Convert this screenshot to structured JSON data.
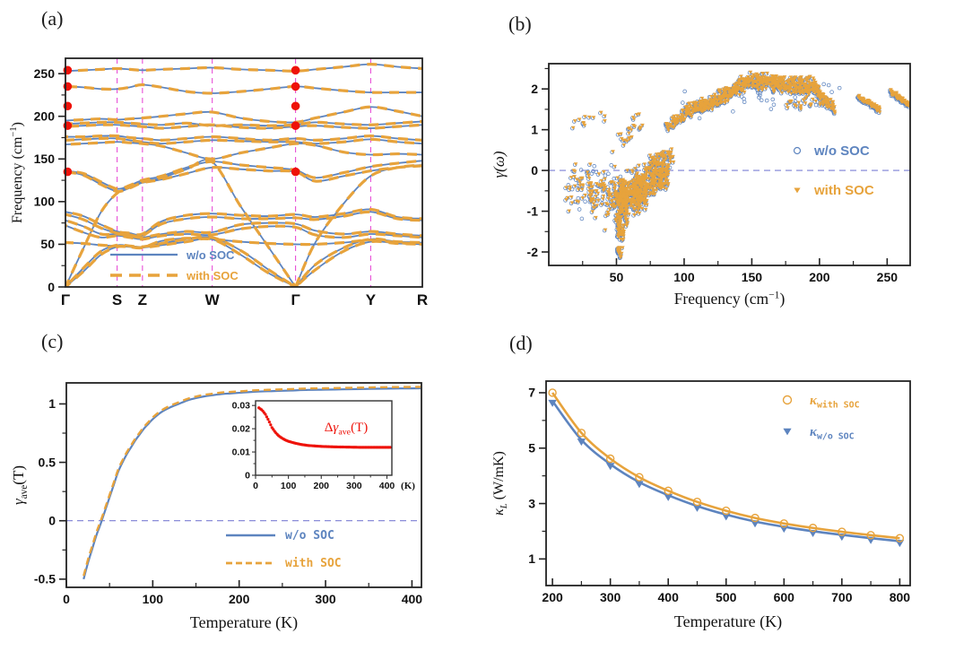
{
  "palette": {
    "blue": "#5d84bf",
    "orange": "#e7a33c",
    "red": "#ee1209",
    "magenta": "#e84fd7",
    "zero_line": "#7b7fd4",
    "frame": "#222222",
    "text": "#111111",
    "inset_frame": "#333333"
  },
  "chart_data": [
    {
      "id": "a",
      "type": "line",
      "subtype": "phonon-dispersion",
      "panel_label": "(a)",
      "ylabel_parts": [
        {
          "t": "Frequency (cm"
        },
        {
          "t": "−1",
          "sup": true
        },
        {
          "t": ")"
        }
      ],
      "ylim": [
        0,
        268
      ],
      "yticks": {
        "values": [
          0,
          50,
          100,
          150,
          200,
          250
        ],
        "labels": [
          "0",
          "50",
          "100",
          "150",
          "200",
          "250"
        ],
        "minor_step": 25
      },
      "kpath": {
        "labels": [
          "Γ",
          "S",
          "Z",
          "W",
          "Γ",
          "Y",
          "R"
        ],
        "positions": [
          0,
          0.1447,
          0.2157,
          0.4112,
          0.6447,
          0.8553,
          1
        ]
      },
      "band_x": [
        0,
        0.05,
        0.1,
        0.145,
        0.18,
        0.215,
        0.27,
        0.34,
        0.41,
        0.49,
        0.57,
        0.6447,
        0.7,
        0.78,
        0.855,
        0.93,
        1
      ],
      "bands_cm1": [
        [
          0,
          18,
          38,
          47,
          47,
          46,
          49,
          53,
          56,
          38,
          16,
          0,
          20,
          42,
          53,
          51,
          50
        ],
        [
          0,
          22,
          42,
          49,
          48,
          47,
          51,
          56,
          58,
          43,
          20,
          0,
          26,
          46,
          56,
          53,
          52
        ],
        [
          0,
          45,
          88,
          110,
          117,
          123,
          128,
          138,
          147,
          95,
          46,
          0,
          52,
          98,
          130,
          140,
          143
        ],
        [
          52,
          51,
          49,
          48,
          47,
          46,
          54,
          57,
          56,
          53,
          51,
          50,
          50,
          52,
          55,
          52,
          50
        ],
        [
          72,
          64,
          58,
          60,
          58,
          56,
          60,
          62,
          61,
          68,
          71,
          70,
          61,
          58,
          62,
          60,
          58
        ],
        [
          78,
          71,
          62,
          62,
          60,
          58,
          62,
          65,
          64,
          73,
          75,
          74,
          66,
          62,
          65,
          62,
          60
        ],
        [
          85,
          79,
          69,
          63,
          61,
          60,
          74,
          80,
          82,
          80,
          80,
          81,
          79,
          83,
          88,
          80,
          78
        ],
        [
          88,
          83,
          73,
          65,
          63,
          62,
          77,
          84,
          86,
          84,
          83,
          85,
          82,
          86,
          91,
          82,
          80
        ],
        [
          135,
          131,
          120,
          112,
          116,
          122,
          126,
          133,
          140,
          138,
          136,
          135,
          124,
          130,
          136,
          140,
          142
        ],
        [
          136,
          133,
          123,
          115,
          119,
          125,
          130,
          140,
          147,
          143,
          140,
          137,
          128,
          134,
          141,
          145,
          148
        ],
        [
          167,
          168,
          169,
          170,
          169,
          168,
          165,
          157,
          150,
          157,
          163,
          168,
          166,
          158,
          155,
          156,
          155
        ],
        [
          172,
          173,
          174,
          174,
          172,
          170,
          168,
          170,
          172,
          171,
          170,
          170,
          168,
          170,
          173,
          170,
          168
        ],
        [
          176,
          176,
          177,
          177,
          175,
          174,
          172,
          174,
          176,
          174,
          172,
          174,
          172,
          174,
          177,
          174,
          172
        ],
        [
          188,
          189,
          190,
          190,
          189,
          188,
          186,
          188,
          190,
          187,
          186,
          188,
          189,
          187,
          186,
          188,
          190
        ],
        [
          191,
          192,
          193,
          193,
          192,
          191,
          190,
          192,
          189,
          190,
          189,
          190,
          193,
          191,
          190,
          192,
          194
        ],
        [
          195,
          196,
          197,
          196,
          197,
          198,
          200,
          203,
          205,
          198,
          194,
          193,
          198,
          205,
          211,
          206,
          200
        ],
        [
          235,
          234,
          232,
          232,
          234,
          237,
          234,
          229,
          227,
          229,
          232,
          235,
          233,
          230,
          228,
          228,
          228
        ],
        [
          253,
          254,
          255,
          256,
          255,
          254,
          255,
          256,
          257,
          255,
          254,
          253,
          255,
          258,
          261,
          258,
          256
        ]
      ],
      "raman_dots_cm1": [
        135,
        189,
        212,
        235,
        254
      ],
      "raman_dot_positions": [
        0.006,
        0.6447
      ],
      "legend": [
        {
          "label": "w/o SOC",
          "style": "solid",
          "color": "blue"
        },
        {
          "label": "with SOC",
          "style": "dashed",
          "color": "orange"
        }
      ]
    },
    {
      "id": "b",
      "type": "scatter",
      "panel_label": "(b)",
      "xlabel_parts": [
        {
          "t": "Frequency (cm"
        },
        {
          "t": "−1",
          "sup": true
        },
        {
          "t": ")"
        }
      ],
      "ylabel_parts": [
        {
          "t": "γ(ω)",
          "i": true
        }
      ],
      "xlim": [
        0,
        267
      ],
      "ylim": [
        -2.33,
        2.62
      ],
      "xticks": {
        "values": [
          50,
          100,
          150,
          200,
          250
        ],
        "labels": [
          "50",
          "100",
          "150",
          "200",
          "250"
        ],
        "minor_step": 25
      },
      "yticks": {
        "values": [
          -2,
          -1,
          0,
          1,
          2
        ],
        "labels": [
          "-2",
          "-1",
          "0",
          "1",
          "2"
        ],
        "minor_step": 0.5
      },
      "zero_line": 0,
      "clusters": [
        [
          12,
          32,
          -0.45,
          -0.35,
          0.38,
          40
        ],
        [
          15,
          45,
          1.15,
          1.45,
          0.16,
          12
        ],
        [
          30,
          48,
          -0.55,
          -0.75,
          0.45,
          70
        ],
        [
          44,
          70,
          0.35,
          1.3,
          0.3,
          26
        ],
        [
          48,
          58,
          -0.8,
          -0.9,
          0.42,
          90
        ],
        [
          50,
          55,
          -1.45,
          -1.55,
          0.28,
          45
        ],
        [
          50.5,
          53.5,
          -1.95,
          -2.08,
          0.1,
          14
        ],
        [
          52,
          72,
          -0.75,
          -0.45,
          0.38,
          220
        ],
        [
          62,
          88,
          -0.5,
          -0.05,
          0.3,
          240
        ],
        [
          74,
          92,
          0.15,
          0.35,
          0.22,
          60
        ],
        [
          86,
          101,
          1.05,
          1.35,
          0.12,
          50
        ],
        [
          100,
          125,
          1.45,
          1.7,
          0.13,
          140
        ],
        [
          125,
          150,
          1.75,
          2.25,
          0.14,
          150
        ],
        [
          150,
          196,
          2.2,
          2.05,
          0.16,
          280
        ],
        [
          175,
          205,
          1.6,
          1.7,
          0.1,
          30
        ],
        [
          196,
          211,
          2.0,
          1.45,
          0.12,
          80
        ],
        [
          228,
          244,
          1.78,
          1.48,
          0.05,
          70
        ],
        [
          252,
          266,
          1.92,
          1.58,
          0.05,
          70
        ]
      ],
      "clusters_blue_only": [
        [
          14,
          90,
          -0.6,
          0.1,
          0.5,
          50
        ],
        [
          95,
          215,
          1.55,
          2.0,
          0.28,
          40
        ]
      ],
      "legend": [
        {
          "label": "w/o SOC",
          "marker": "open-circle",
          "color": "blue"
        },
        {
          "label": "with SOC",
          "marker": "triangle-down",
          "color": "orange"
        }
      ]
    },
    {
      "id": "c",
      "type": "line",
      "panel_label": "(c)",
      "xlabel_parts": [
        {
          "t": "Temperature (K)"
        }
      ],
      "ylabel_parts": [
        {
          "t": "γ",
          "i": true
        },
        {
          "t": "ave",
          "sub": true
        },
        {
          "t": "(T)"
        }
      ],
      "xlim": [
        0,
        411
      ],
      "ylim": [
        -0.57,
        1.18
      ],
      "xticks": {
        "values": [
          0,
          100,
          200,
          300,
          400
        ],
        "labels": [
          "0",
          "100",
          "200",
          "300",
          "400"
        ],
        "minor_step": 50
      },
      "yticks": {
        "values": [
          -0.5,
          0,
          0.5,
          1
        ],
        "labels": [
          "-0.5",
          "0",
          "0.5",
          "1"
        ],
        "minor_step": 0.25
      },
      "zero_line": 0,
      "temperatures": [
        20,
        25,
        30,
        35,
        40,
        45,
        50,
        55,
        60,
        65,
        70,
        75,
        80,
        85,
        90,
        95,
        100,
        110,
        120,
        130,
        140,
        150,
        160,
        170,
        180,
        190,
        200,
        220,
        240,
        260,
        280,
        300,
        320,
        340,
        360,
        380,
        400,
        410
      ],
      "series": [
        {
          "name": "w/o SOC",
          "color": "blue",
          "style": "solid",
          "values": [
            -0.5,
            -0.36,
            -0.24,
            -0.12,
            -0.02,
            0.09,
            0.2,
            0.31,
            0.42,
            0.5,
            0.57,
            0.63,
            0.69,
            0.74,
            0.79,
            0.83,
            0.87,
            0.93,
            0.97,
            1.0,
            1.03,
            1.05,
            1.065,
            1.075,
            1.085,
            1.09,
            1.095,
            1.105,
            1.11,
            1.115,
            1.12,
            1.122,
            1.125,
            1.127,
            1.13,
            1.132,
            1.133,
            1.134
          ]
        },
        {
          "name": "with SOC",
          "color": "orange",
          "style": "dashed",
          "values": [
            -0.472,
            -0.333,
            -0.214,
            -0.095,
            0.004,
            0.112,
            0.221,
            0.33,
            0.439,
            0.518,
            0.587,
            0.647,
            0.705,
            0.756,
            0.805,
            0.845,
            0.885,
            0.944,
            0.984,
            1.014,
            1.043,
            1.063,
            1.078,
            1.088,
            1.098,
            1.103,
            1.107,
            1.117,
            1.122,
            1.127,
            1.132,
            1.134,
            1.137,
            1.139,
            1.142,
            1.144,
            1.145,
            1.146
          ]
        }
      ],
      "inset": {
        "label_parts": [
          {
            "t": "Δ"
          },
          {
            "t": "γ",
            "i": true
          },
          {
            "t": "ave",
            "sub": true
          },
          {
            "t": "(T)"
          }
        ],
        "xlim": [
          0,
          415
        ],
        "ylim": [
          0,
          0.032
        ],
        "xticks": {
          "values": [
            0,
            100,
            200,
            300,
            400
          ],
          "labels": [
            "0",
            "100",
            "200",
            "300",
            "400"
          ],
          "minor_step": 50
        },
        "yticks": {
          "values": [
            0,
            0.01,
            0.02,
            0.03
          ],
          "labels": [
            "0",
            "0.01",
            "0.02",
            "0.03"
          ],
          "minor_step": 0.005
        },
        "x_unit": "(K)",
        "control_points": [
          [
            10,
            0.029
          ],
          [
            20,
            0.028
          ],
          [
            30,
            0.0262
          ],
          [
            40,
            0.0235
          ],
          [
            50,
            0.0205
          ],
          [
            60,
            0.0185
          ],
          [
            70,
            0.017
          ],
          [
            80,
            0.016
          ],
          [
            90,
            0.0152
          ],
          [
            100,
            0.0146
          ],
          [
            120,
            0.0138
          ],
          [
            140,
            0.0132
          ],
          [
            160,
            0.0128
          ],
          [
            180,
            0.0126
          ],
          [
            200,
            0.0124
          ],
          [
            240,
            0.0122
          ],
          [
            280,
            0.0121
          ],
          [
            320,
            0.012
          ],
          [
            360,
            0.012
          ],
          [
            410,
            0.012
          ]
        ],
        "point_step": 4
      }
    },
    {
      "id": "d",
      "type": "line",
      "panel_label": "(d)",
      "xlabel_parts": [
        {
          "t": "Temperature (K)"
        }
      ],
      "ylabel_parts": [
        {
          "t": "κ",
          "i": true
        },
        {
          "t": "L",
          "sub": true,
          "i": true
        },
        {
          "t": " (W/mK)"
        }
      ],
      "xlim": [
        189,
        818
      ],
      "ylim": [
        0.04,
        7.42
      ],
      "xticks": {
        "values": [
          200,
          300,
          400,
          500,
          600,
          700,
          800
        ],
        "labels": [
          "200",
          "300",
          "400",
          "500",
          "600",
          "700",
          "800"
        ],
        "minor_step": 50
      },
      "yticks": {
        "values": [
          1,
          3,
          5,
          7
        ],
        "labels": [
          "1",
          "3",
          "5",
          "7"
        ],
        "minor_step": 1
      },
      "temperatures": [
        200,
        250,
        300,
        350,
        400,
        450,
        500,
        550,
        600,
        650,
        700,
        750,
        800
      ],
      "series": [
        {
          "name_parts": [
            {
              "t": "κ",
              "i": true
            },
            {
              "t": "with SOC",
              "sub": true
            }
          ],
          "color": "orange",
          "marker": "open-circle",
          "values": [
            7.0,
            5.55,
            4.62,
            3.95,
            3.46,
            3.06,
            2.74,
            2.48,
            2.28,
            2.12,
            1.98,
            1.86,
            1.75
          ]
        },
        {
          "name_parts": [
            {
              "t": "κ",
              "i": true
            },
            {
              "t": "w/o SOC",
              "sub": true
            }
          ],
          "color": "blue",
          "marker": "triangle-down",
          "values": [
            6.7,
            5.3,
            4.42,
            3.77,
            3.3,
            2.91,
            2.6,
            2.35,
            2.16,
            2.0,
            1.87,
            1.75,
            1.64
          ]
        }
      ]
    }
  ]
}
